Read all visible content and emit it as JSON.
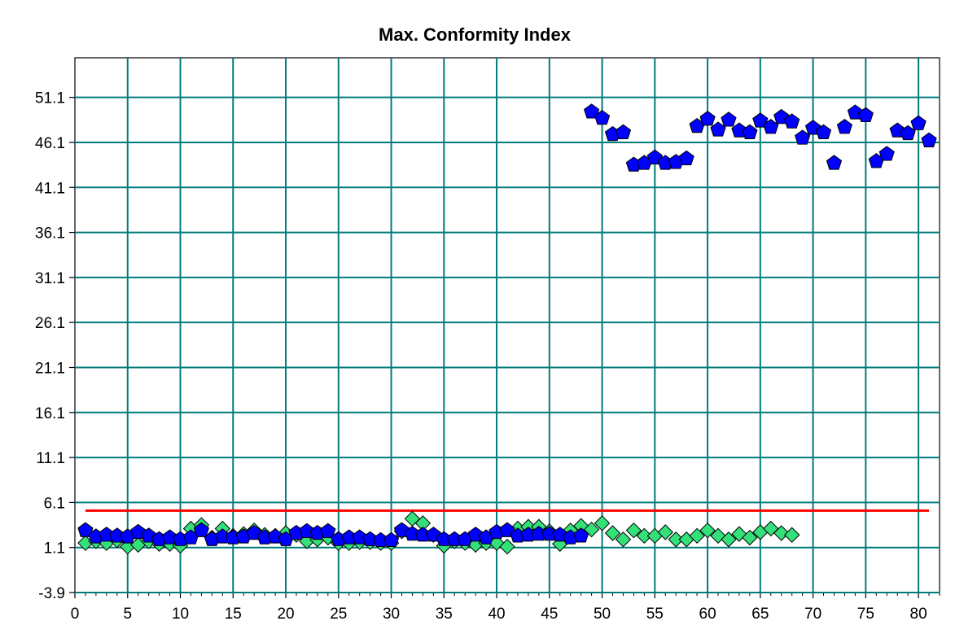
{
  "chart_data": {
    "type": "scatter",
    "title": "Max. Conformity Index",
    "xlabel": "",
    "ylabel": "",
    "xlim": [
      0,
      82
    ],
    "ylim": [
      -3.9,
      55.5
    ],
    "x_ticks": [
      0,
      5,
      10,
      15,
      20,
      25,
      30,
      35,
      40,
      45,
      50,
      55,
      60,
      65,
      70,
      75,
      80
    ],
    "y_ticks": [
      -3.9,
      1.1,
      6.1,
      11.1,
      16.1,
      21.1,
      26.1,
      31.1,
      36.1,
      41.1,
      46.1,
      51.1
    ],
    "grid": true,
    "series": [
      {
        "marker": "diamond",
        "color": "#33E07A",
        "x": [
          1,
          2,
          3,
          4,
          5,
          6,
          7,
          8,
          9,
          10,
          11,
          12,
          13,
          14,
          15,
          16,
          17,
          18,
          19,
          20,
          21,
          22,
          23,
          24,
          25,
          26,
          27,
          28,
          29,
          30,
          31,
          32,
          33,
          34,
          35,
          36,
          37,
          38,
          39,
          40,
          41,
          42,
          43,
          44,
          45,
          46,
          47,
          48,
          49,
          50,
          51,
          52,
          53,
          54,
          55,
          56,
          57,
          58,
          59,
          60,
          61,
          62,
          63,
          64,
          65,
          66,
          67,
          68
        ],
        "values": [
          1.6,
          1.8,
          1.6,
          1.9,
          1.2,
          1.4,
          1.8,
          1.5,
          1.5,
          1.3,
          3.2,
          3.6,
          2.2,
          3.2,
          2.4,
          2.6,
          3.0,
          2.5,
          2.4,
          2.7,
          2.5,
          1.8,
          2.0,
          2.2,
          1.6,
          1.6,
          1.7,
          1.7,
          1.6,
          1.6,
          2.9,
          4.3,
          3.8,
          2.5,
          1.3,
          1.8,
          1.6,
          1.4,
          1.6,
          1.6,
          1.2,
          3.2,
          3.4,
          3.4,
          2.9,
          1.5,
          3.0,
          3.5,
          3.1,
          3.8,
          2.7,
          2.0,
          3.0,
          2.4,
          2.4,
          2.8,
          2.0,
          2.0,
          2.4,
          3.0,
          2.4,
          2.0,
          2.6,
          2.2,
          2.8,
          3.2,
          2.7,
          2.5
        ]
      },
      {
        "marker": "pentagon",
        "color": "#0000FF",
        "x": [
          1,
          2,
          3,
          4,
          5,
          6,
          7,
          8,
          9,
          10,
          11,
          12,
          13,
          14,
          15,
          16,
          17,
          18,
          19,
          20,
          21,
          22,
          23,
          24,
          25,
          26,
          27,
          28,
          29,
          30,
          31,
          32,
          33,
          34,
          35,
          36,
          37,
          38,
          39,
          40,
          41,
          42,
          43,
          44,
          45,
          46,
          47,
          48,
          49,
          50,
          51,
          52,
          53,
          54,
          55,
          56,
          57,
          58,
          59,
          60,
          61,
          62,
          63,
          64,
          65,
          66,
          67,
          68,
          69,
          70,
          71,
          72,
          73,
          74,
          75,
          76,
          77,
          78,
          79,
          80,
          81
        ],
        "values": [
          3.0,
          2.3,
          2.5,
          2.4,
          2.3,
          2.8,
          2.4,
          2.0,
          2.2,
          2.0,
          2.2,
          3.0,
          2.0,
          2.3,
          2.2,
          2.3,
          2.7,
          2.2,
          2.3,
          2.0,
          2.7,
          2.9,
          2.7,
          2.9,
          2.0,
          2.2,
          2.2,
          2.0,
          1.9,
          1.9,
          3.0,
          2.6,
          2.5,
          2.5,
          2.0,
          2.0,
          2.0,
          2.5,
          2.2,
          2.8,
          3.0,
          2.4,
          2.5,
          2.6,
          2.6,
          2.5,
          2.2,
          2.4,
          49.5,
          48.8,
          47.0,
          47.2,
          43.6,
          43.8,
          44.4,
          43.8,
          43.9,
          44.3,
          47.9,
          48.7,
          47.5,
          48.6,
          47.4,
          47.2,
          48.5,
          47.8,
          48.9,
          48.4,
          46.6,
          47.7,
          47.2,
          43.8,
          47.8,
          49.4,
          49.1,
          44.0,
          44.8,
          47.4,
          47.1,
          48.2,
          46.3
        ]
      },
      {
        "type": "line",
        "color": "#FF0000",
        "x": [
          1,
          81
        ],
        "values": [
          5.2,
          5.2
        ]
      }
    ]
  }
}
